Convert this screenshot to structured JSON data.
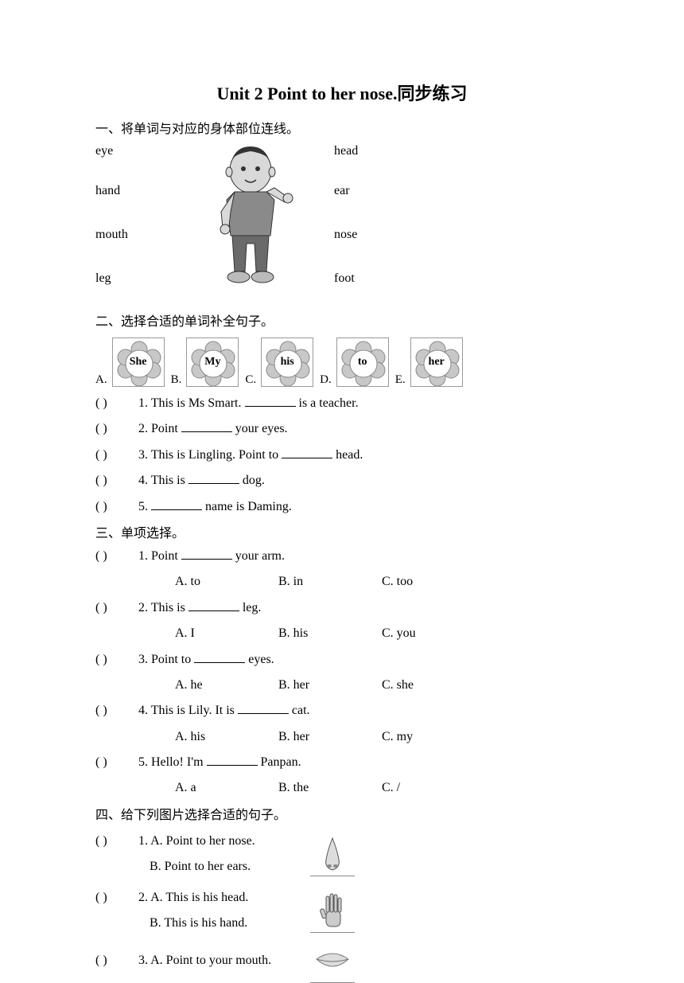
{
  "title": "Unit 2 Point to her nose.同步练习",
  "section1": {
    "heading": "一、将单词与对应的身体部位连线。",
    "left": [
      "eye",
      "hand",
      "mouth",
      "leg"
    ],
    "right": [
      "head",
      "ear",
      "nose",
      "foot"
    ],
    "row_top": [
      5,
      55,
      110,
      165
    ]
  },
  "section2": {
    "heading": "二、选择合适的单词补全句子。",
    "options": [
      {
        "letter": "A.",
        "label": "She"
      },
      {
        "letter": "B.",
        "label": "My"
      },
      {
        "letter": "C.",
        "label": "his"
      },
      {
        "letter": "D.",
        "label": "to"
      },
      {
        "letter": "E.",
        "label": "her"
      }
    ],
    "flower_colors": {
      "petal": "#c8c8c8",
      "center": "#ffffff",
      "border": "#888888"
    },
    "questions": [
      {
        "pre": "1. This is Ms Smart. ",
        "post": " is a teacher."
      },
      {
        "pre": "2. Point ",
        "post": " your eyes."
      },
      {
        "pre": "3. This is Lingling. Point to ",
        "post": " head."
      },
      {
        "pre": "4. This is ",
        "post": " dog."
      },
      {
        "pre": "5. ",
        "post": " name is Daming."
      }
    ]
  },
  "section3": {
    "heading": "三、单项选择。",
    "questions": [
      {
        "q": "1. Point ",
        "post": " your arm.",
        "a": "A. to",
        "b": "B. in",
        "c": "C. too"
      },
      {
        "q": "2. This is ",
        "post": " leg.",
        "a": "A. I",
        "b": "B. his",
        "c": "C. you"
      },
      {
        "q": "3. Point to ",
        "post": " eyes.",
        "a": "A. he",
        "b": "B. her",
        "c": "C. she"
      },
      {
        "q": "4. This is Lily. It is ",
        "post": " cat.",
        "a": "A. his",
        "b": "B. her",
        "c": "C. my"
      },
      {
        "q": "5. Hello! I'm ",
        "post": " Panpan.",
        "a": "A. a",
        "b": "B. the",
        "c": "C. /"
      }
    ]
  },
  "section4": {
    "heading": "四、给下列图片选择合适的句子。",
    "questions": [
      {
        "a": "1. A. Point to her nose.",
        "b": "B. Point to her ears.",
        "icon": "nose"
      },
      {
        "a": "2. A. This is his head.",
        "b": "B. This is his hand.",
        "icon": "hand"
      },
      {
        "a": "3. A. Point to your mouth.",
        "b": "",
        "icon": "mouth"
      }
    ]
  },
  "paren": "(        )"
}
